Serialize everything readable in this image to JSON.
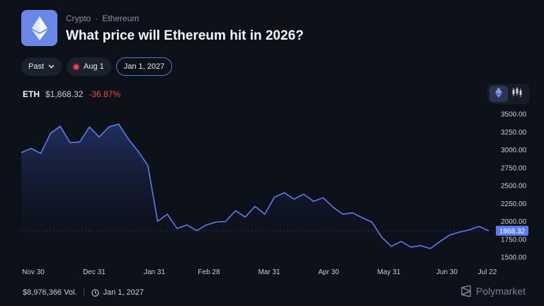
{
  "header": {
    "breadcrumb": [
      "Crypto",
      "Ethereum"
    ],
    "breadcrumb_separator": "·",
    "title": "What price will Ethereum hit in 2026?",
    "logo_icon": "ethereum-icon",
    "logo_color": "#6a87e8"
  },
  "filters": {
    "past_label": "Past",
    "date_label": "Aug 1",
    "selected_label": "Jan 1, 2027"
  },
  "price": {
    "ticker": "ETH",
    "value": "$1,868.32",
    "change": "-36.87%",
    "change_color": "#ef4b4b"
  },
  "chart_controls": {
    "line_icon": "ethereum-icon",
    "candles_icon": "candlestick-icon",
    "active": "line"
  },
  "chart_data": {
    "type": "line",
    "line_color": "#5b7cf0",
    "y_ticks": [
      "3500.00",
      "3250.00",
      "3000.00",
      "2750.00",
      "2500.00",
      "2250.00",
      "2000.00",
      "1750.00",
      "1500.00"
    ],
    "x_ticks": [
      "Nov 30",
      "Dec 31",
      "Jan 31",
      "Feb 28",
      "Mar 31",
      "Apr 30",
      "May 31",
      "Jun 30",
      "Jul 22"
    ],
    "ylim": [
      1500,
      3500
    ],
    "current_value_label": "1868.32",
    "current_value": 1868.32,
    "x": [
      "Nov 28",
      "Dec 3",
      "Dec 8",
      "Dec 13",
      "Dec 18",
      "Dec 23",
      "Dec 28",
      "Jan 2",
      "Jan 7",
      "Jan 12",
      "Jan 17",
      "Jan 22",
      "Jan 27",
      "Feb 1",
      "Feb 6",
      "Feb 11",
      "Feb 16",
      "Feb 21",
      "Feb 26",
      "Mar 3",
      "Mar 8",
      "Mar 13",
      "Mar 18",
      "Mar 23",
      "Mar 28",
      "Apr 2",
      "Apr 7",
      "Apr 12",
      "Apr 17",
      "Apr 22",
      "Apr 27",
      "May 2",
      "May 7",
      "May 12",
      "May 17",
      "May 22",
      "May 27",
      "Jun 1",
      "Jun 6",
      "Jun 11",
      "Jun 16",
      "Jun 21",
      "Jun 26",
      "Jul 1",
      "Jul 6",
      "Jul 11",
      "Jul 16",
      "Jul 21",
      "Jul 26"
    ],
    "values": [
      2960,
      3020,
      2950,
      3230,
      3330,
      3100,
      3110,
      3320,
      3180,
      3320,
      3360,
      3150,
      2980,
      2780,
      2000,
      2100,
      1900,
      1950,
      1870,
      1950,
      1990,
      2000,
      2150,
      2060,
      2210,
      2100,
      2340,
      2400,
      2310,
      2380,
      2280,
      2330,
      2200,
      2100,
      2120,
      2050,
      1990,
      1780,
      1650,
      1720,
      1640,
      1660,
      1620,
      1720,
      1810,
      1850,
      1880,
      1930,
      1868
    ]
  },
  "footer": {
    "volume": "$8,976,366 Vol.",
    "end_date": "Jan 1, 2027",
    "brand": "Polymarket"
  }
}
